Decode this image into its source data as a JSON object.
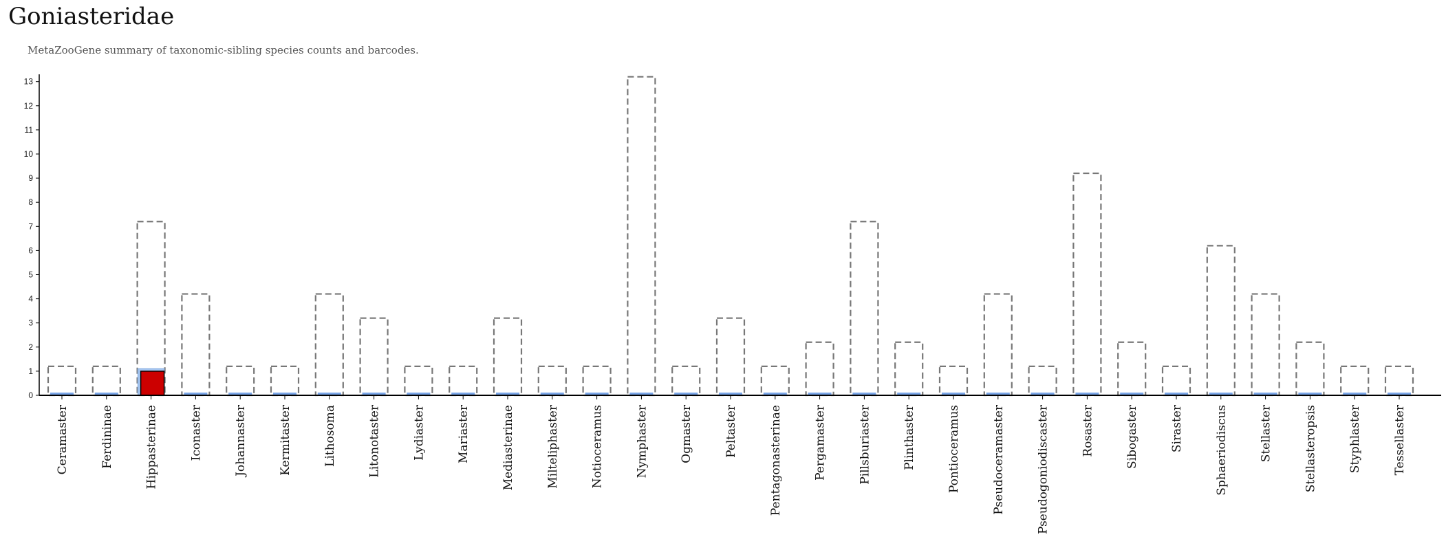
{
  "title": "Goniasteridae",
  "subtitle": "MetaZooGene summary of taxonomic-sibling species counts and barcodes.",
  "colors": {
    "total_outline": "#777777",
    "barcoded_fill": "#7aa6e8",
    "highlight_fill": "#cc0000",
    "highlight_outer": "#a9c9f2",
    "axis": "#000000"
  },
  "chart_data": {
    "type": "bar",
    "title": "Goniasteridae",
    "subtitle": "MetaZooGene summary of taxonomic-sibling species counts and barcodes.",
    "xlabel": "",
    "ylabel": "",
    "ylim": [
      0,
      13.3
    ],
    "yticks": [
      0,
      1,
      2,
      3,
      4,
      5,
      6,
      7,
      8,
      9,
      10,
      11,
      12,
      13
    ],
    "grid": false,
    "categories": [
      "Ceramaster",
      "Ferdininae",
      "Hippasterinae",
      "Iconaster",
      "Johannaster",
      "Kermitaster",
      "Lithosoma",
      "Litonotaster",
      "Lydiaster",
      "Mariaster",
      "Mediasterinae",
      "Milteliphaster",
      "Notioceramus",
      "Nymphaster",
      "Ogmaster",
      "Peltaster",
      "Pentagonasterinae",
      "Pergamaster",
      "Pillsburiaster",
      "Plinthaster",
      "Pontioceramus",
      "Pseudoceramaster",
      "Pseudogoniodiscaster",
      "Rosaster",
      "Sibogaster",
      "Siraster",
      "Sphaeriodiscus",
      "Stellaster",
      "Stellasteropsis",
      "Styphlaster",
      "Tessellaster"
    ],
    "series": [
      {
        "values": [
          1,
          1,
          7,
          4,
          1,
          1,
          4,
          3,
          1,
          1,
          3,
          1,
          1,
          13,
          1,
          3,
          1,
          2,
          7,
          2,
          1,
          4,
          1,
          9,
          2,
          1,
          6,
          4,
          2,
          1,
          1
        ]
      },
      {
        "values": [
          0,
          0,
          1,
          0,
          0,
          0,
          0,
          0,
          0,
          0,
          0,
          0,
          0,
          0,
          0,
          0,
          0,
          0,
          0,
          0,
          0,
          0,
          0,
          0,
          0,
          0,
          0,
          0,
          0,
          0,
          0
        ]
      }
    ],
    "highlight_category": "Hippasterinae"
  }
}
